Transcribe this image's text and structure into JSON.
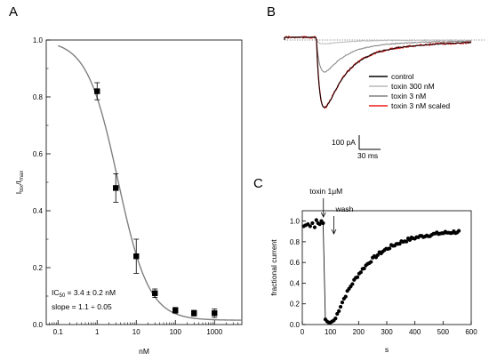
{
  "panels": {
    "a": "A",
    "b": "B",
    "c": "C"
  },
  "chart_data": [
    {
      "panel": "A",
      "type": "scatter",
      "xscale": "log",
      "xlim": [
        0.05,
        5000
      ],
      "ylim": [
        0.0,
        1.0
      ],
      "xlabel": "nM",
      "ylabel_parts": [
        "I",
        "tox",
        "/I",
        "max"
      ],
      "x_ticks": [
        0.1,
        1,
        10,
        100,
        1000
      ],
      "x_tick_labels": [
        "0.1",
        "1",
        "10",
        "100",
        "1000"
      ],
      "y_ticks": [
        0.0,
        0.2,
        0.4,
        0.6,
        0.8,
        1.0
      ],
      "y_tick_labels": [
        "0.0",
        "0.2",
        "0.4",
        "0.6",
        "0.8",
        "1.0"
      ],
      "points": [
        {
          "x": 1,
          "y": 0.82,
          "err": 0.03
        },
        {
          "x": 3,
          "y": 0.48,
          "err": 0.05
        },
        {
          "x": 10,
          "y": 0.24,
          "err": 0.06
        },
        {
          "x": 30,
          "y": 0.11,
          "err": 0.015
        },
        {
          "x": 100,
          "y": 0.05,
          "err": 0.01
        },
        {
          "x": 300,
          "y": 0.04,
          "err": 0.01
        },
        {
          "x": 1000,
          "y": 0.04,
          "err": 0.015
        }
      ],
      "fit": {
        "ic50": 3.4,
        "slope": 1.1,
        "bottom": 0.015,
        "xrange": [
          0.1,
          5000
        ]
      },
      "annotation_ic50": [
        "IC",
        "50",
        " = 3.4 ± 0.2 nM"
      ],
      "annotation_slope": "slope = 1.1 ÷ 0.05",
      "colors": {
        "points": "#000000",
        "fit": "#808080"
      }
    },
    {
      "panel": "B",
      "type": "line",
      "legend": [
        "control",
        "toxin 300 nM",
        "toxin 3 nM",
        "toxin 3 nM scaled"
      ],
      "legend_position": "right",
      "colors": [
        "#000000",
        "#b8b8b8",
        "#808080",
        "#ee1c1c"
      ],
      "series": [
        {
          "name": "control",
          "peak_fraction": 1.0,
          "tau": 1.0
        },
        {
          "name": "toxin 300 nM",
          "peak_fraction": 0.06,
          "tau": 0.9
        },
        {
          "name": "toxin 3 nM",
          "peak_fraction": 0.48,
          "tau": 0.95
        },
        {
          "name": "toxin 3 nM scaled",
          "peak_fraction": 1.0,
          "tau": 1.0
        }
      ],
      "scale_bar_current": "100 pA",
      "scale_bar_time": "30 ms"
    },
    {
      "panel": "C",
      "type": "scatter",
      "xlim": [
        0,
        600
      ],
      "ylim": [
        0.0,
        1.1
      ],
      "xlabel": "s",
      "ylabel": "fractional current",
      "x_ticks": [
        0,
        100,
        200,
        300,
        400,
        500,
        600
      ],
      "x_tick_labels": [
        "0",
        "100",
        "200",
        "300",
        "400",
        "500",
        "600"
      ],
      "y_ticks": [
        0.0,
        0.2,
        0.4,
        0.6,
        0.8,
        1.0
      ],
      "y_tick_labels": [
        "0.0",
        "0.2",
        "0.4",
        "0.6",
        "0.8",
        "1.0"
      ],
      "baseline": [
        [
          5,
          0.95
        ],
        [
          12,
          0.96
        ],
        [
          20,
          0.97
        ],
        [
          28,
          0.95
        ],
        [
          36,
          0.98
        ],
        [
          44,
          0.94
        ],
        [
          50,
          1.01
        ],
        [
          56,
          0.98
        ],
        [
          62,
          0.97
        ],
        [
          68,
          1.0
        ],
        [
          74,
          0.98
        ]
      ],
      "block": [
        [
          82,
          0.05
        ],
        [
          88,
          0.03
        ],
        [
          94,
          0.02
        ],
        [
          100,
          0.02
        ],
        [
          106,
          0.03
        ],
        [
          112,
          0.04
        ]
      ],
      "recovery": {
        "t0": 118,
        "tmax": 560,
        "step": 6,
        "a": 0.92,
        "tau": 120
      },
      "annotation_toxin": "toxin 1μM",
      "annotation_toxin_time": 75,
      "annotation_wash": "wash",
      "annotation_wash_time": 112
    }
  ]
}
